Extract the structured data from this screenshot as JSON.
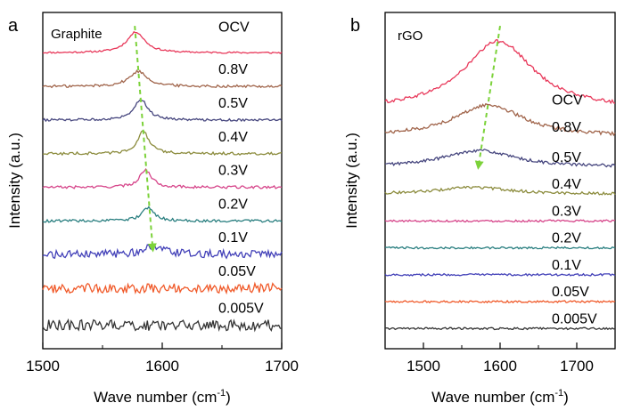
{
  "chart_data": [
    {
      "type": "line",
      "panel": "a",
      "title": "Graphite",
      "xlabel": "Wave number (cm",
      "xlabel_sup": "-1",
      "xlabel_close": ")",
      "ylabel": "Intensity (a.u.)",
      "xlim": [
        1500,
        1700
      ],
      "xticks": [
        1500,
        1600,
        1700
      ],
      "yticks": "none",
      "series": [
        {
          "name": "OCV",
          "color": "#e8385a",
          "baseline": 7.0,
          "peak_x": 1578,
          "peak_height": 0.62,
          "peak_width": 9,
          "noise": 0.025
        },
        {
          "name": "0.8V",
          "color": "#a0644a",
          "baseline": 6.0,
          "peak_x": 1580,
          "peak_height": 0.45,
          "peak_width": 9,
          "noise": 0.04
        },
        {
          "name": "0.5V",
          "color": "#46467e",
          "baseline": 5.0,
          "peak_x": 1582,
          "peak_height": 0.62,
          "peak_width": 7,
          "noise": 0.035
        },
        {
          "name": "0.4V",
          "color": "#8b8b3c",
          "baseline": 4.0,
          "peak_x": 1584,
          "peak_height": 0.66,
          "peak_width": 6,
          "noise": 0.04
        },
        {
          "name": "0.3V",
          "color": "#d6458a",
          "baseline": 3.0,
          "peak_x": 1586,
          "peak_height": 0.52,
          "peak_width": 6,
          "noise": 0.04
        },
        {
          "name": "0.2V",
          "color": "#2a7f80",
          "baseline": 2.0,
          "peak_x": 1588,
          "peak_height": 0.4,
          "peak_width": 6,
          "noise": 0.04
        },
        {
          "name": "0.1V",
          "color": "#4240b8",
          "baseline": 1.0,
          "peak_x": 1592,
          "peak_height": 0.2,
          "peak_width": 12,
          "noise": 0.12
        },
        {
          "name": "0.05V",
          "color": "#f05a2a",
          "baseline": 0.0,
          "peak_x": 1600,
          "peak_height": 0.0,
          "peak_width": 10,
          "noise": 0.14
        },
        {
          "name": "0.005V",
          "color": "#333333",
          "baseline": -1.1,
          "peak_x": 1600,
          "peak_height": 0.0,
          "peak_width": 10,
          "noise": 0.16
        }
      ],
      "annotations": [
        {
          "type": "arrow",
          "style": "dashed",
          "color": "#7cd23a",
          "from": [
            1577,
            7.8
          ],
          "to": [
            1592,
            1.2
          ],
          "note": "peak shift"
        }
      ]
    },
    {
      "type": "line",
      "panel": "b",
      "title": "rGO",
      "xlabel": "Wave number (cm",
      "xlabel_sup": "-1",
      "xlabel_close": ")",
      "ylabel": "Intensity (a.u.)",
      "xlim": [
        1450,
        1750
      ],
      "xticks": [
        1500,
        1600,
        1700
      ],
      "yticks": "none",
      "series": [
        {
          "name": "OCV",
          "color": "#e8385a",
          "baseline": 7.4,
          "peak_x": 1598,
          "peak_height": 2.05,
          "peak_width": 55,
          "noise": 0.05
        },
        {
          "name": "0.8V",
          "color": "#a0644a",
          "baseline": 6.6,
          "peak_x": 1585,
          "peak_height": 0.95,
          "peak_width": 55,
          "noise": 0.05
        },
        {
          "name": "0.5V",
          "color": "#46467e",
          "baseline": 5.7,
          "peak_x": 1572,
          "peak_height": 0.5,
          "peak_width": 55,
          "noise": 0.045
        },
        {
          "name": "0.4V",
          "color": "#8b8b3c",
          "baseline": 4.9,
          "peak_x": 1565,
          "peak_height": 0.2,
          "peak_width": 55,
          "noise": 0.04
        },
        {
          "name": "0.3V",
          "color": "#d6458a",
          "baseline": 4.1,
          "peak_x": 1560,
          "peak_height": 0.0,
          "peak_width": 55,
          "noise": 0.03
        },
        {
          "name": "0.2V",
          "color": "#2a7f80",
          "baseline": 3.3,
          "peak_x": 1560,
          "peak_height": 0.0,
          "peak_width": 55,
          "noise": 0.03
        },
        {
          "name": "0.1V",
          "color": "#4240b8",
          "baseline": 2.5,
          "peak_x": 1560,
          "peak_height": 0.0,
          "peak_width": 55,
          "noise": 0.03
        },
        {
          "name": "0.05V",
          "color": "#f05a2a",
          "baseline": 1.7,
          "peak_x": 1560,
          "peak_height": 0.0,
          "peak_width": 55,
          "noise": 0.03
        },
        {
          "name": "0.005V",
          "color": "#333333",
          "baseline": 0.9,
          "peak_x": 1560,
          "peak_height": 0.0,
          "peak_width": 55,
          "noise": 0.03
        }
      ],
      "annotations": [
        {
          "type": "arrow",
          "style": "dashed",
          "color": "#7cd23a",
          "from": [
            1600,
            9.9
          ],
          "to": [
            1572,
            5.75
          ],
          "note": "peak shift"
        }
      ]
    }
  ]
}
